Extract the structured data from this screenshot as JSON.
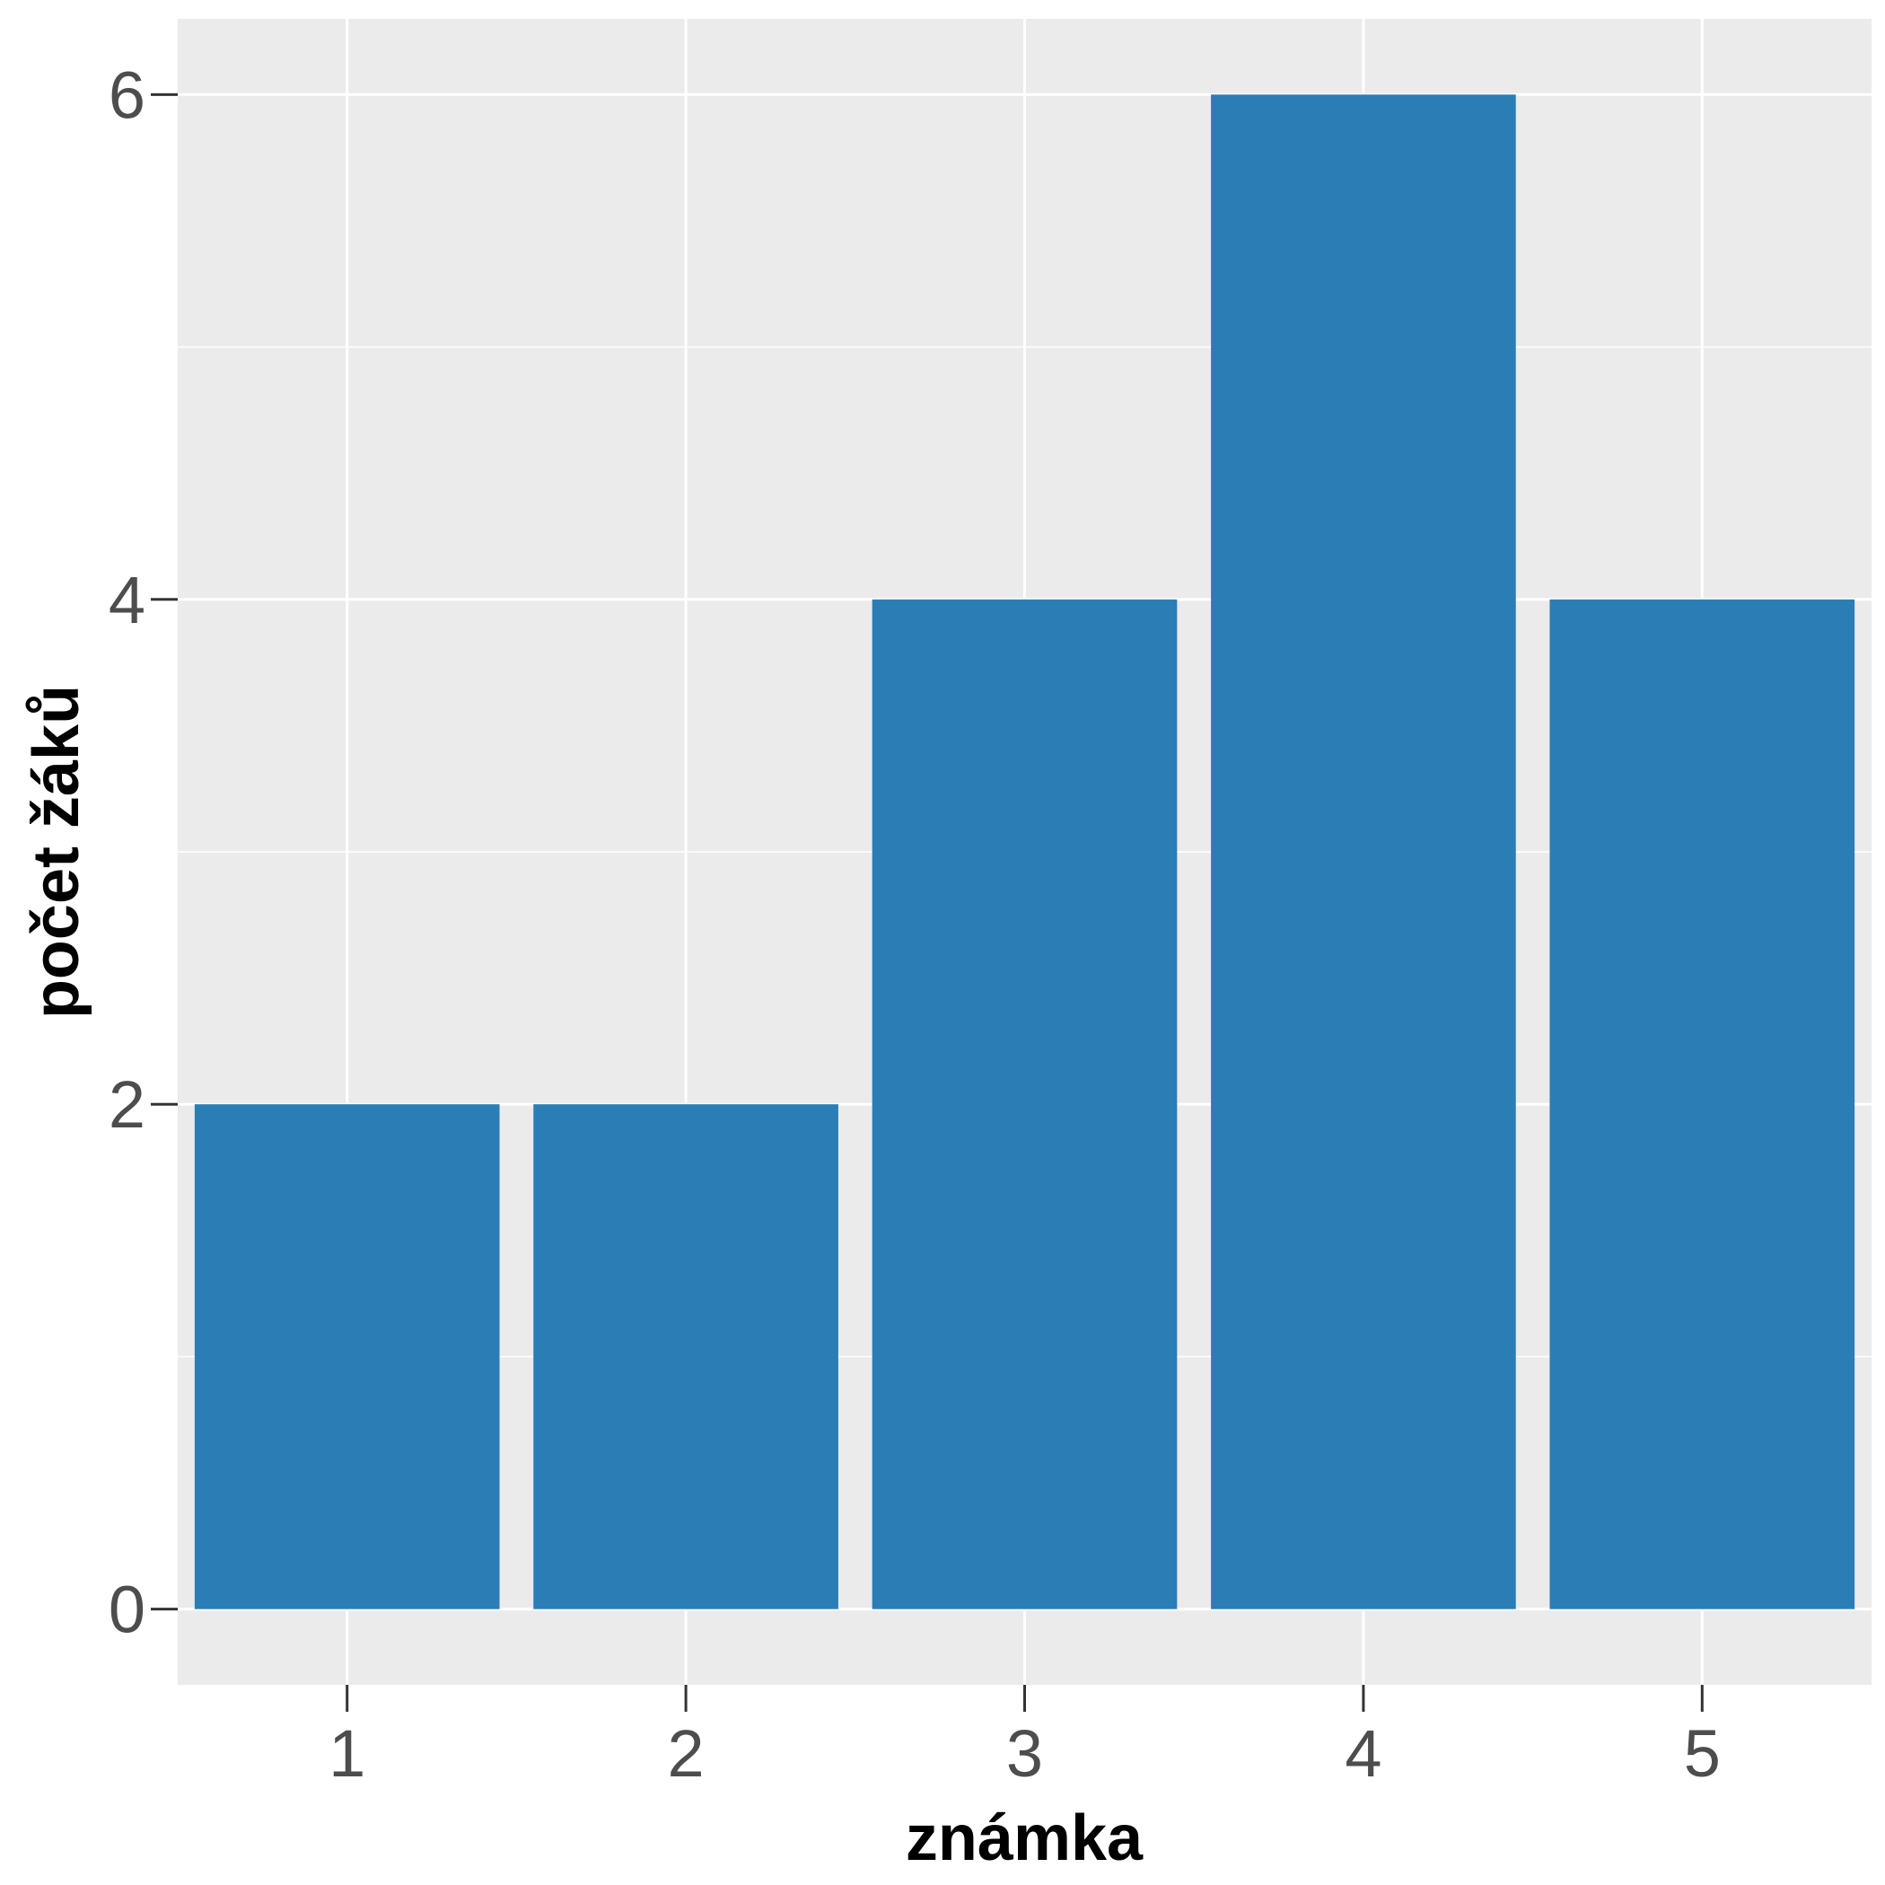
{
  "chart_data": {
    "type": "bar",
    "title": "",
    "xlabel": "známka",
    "ylabel": "počet žáků",
    "categories": [
      "1",
      "2",
      "3",
      "4",
      "5"
    ],
    "values": [
      2,
      2,
      4,
      6,
      4
    ],
    "ylim": [
      -0.3,
      6.3
    ],
    "yticks": [
      0,
      2,
      4,
      6
    ],
    "ytick_labels": [
      "0",
      "2",
      "4",
      "6"
    ],
    "grid": true,
    "legend": "none",
    "colors": {
      "bar": "#2b7eb5",
      "panel": "#ebebeb",
      "grid": "#ffffff",
      "tick_text": "#4d4d4d",
      "axis_title": "#000000",
      "tick_mark": "#333333"
    }
  }
}
